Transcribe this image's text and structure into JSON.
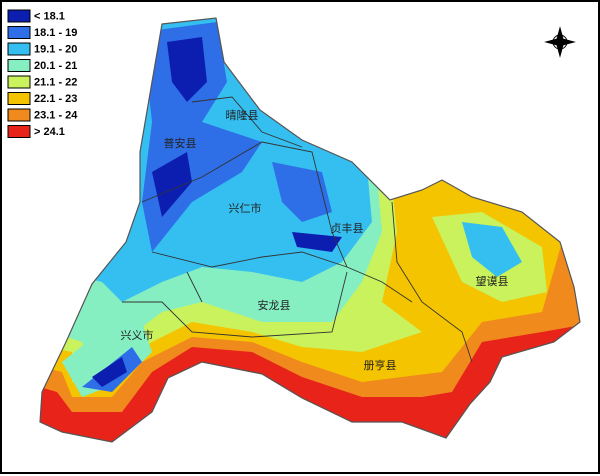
{
  "legend": [
    {
      "label": "< 18.1",
      "color": "#0b1eb0"
    },
    {
      "label": "18.1 - 19",
      "color": "#2e6fe8"
    },
    {
      "label": "19.1 - 20",
      "color": "#35bff0"
    },
    {
      "label": "20.1 - 21",
      "color": "#86efc2"
    },
    {
      "label": "21.1 - 22",
      "color": "#c9f25c"
    },
    {
      "label": "22.1 - 23",
      "color": "#f5c400"
    },
    {
      "label": "23.1 - 24",
      "color": "#f08a1c"
    },
    {
      "label": "> 24.1",
      "color": "#e8231a"
    }
  ],
  "places": [
    "晴隆县",
    "普安县",
    "兴仁市",
    "贞丰县",
    "望谟县",
    "安龙县",
    "兴义市",
    "册亨县"
  ]
}
